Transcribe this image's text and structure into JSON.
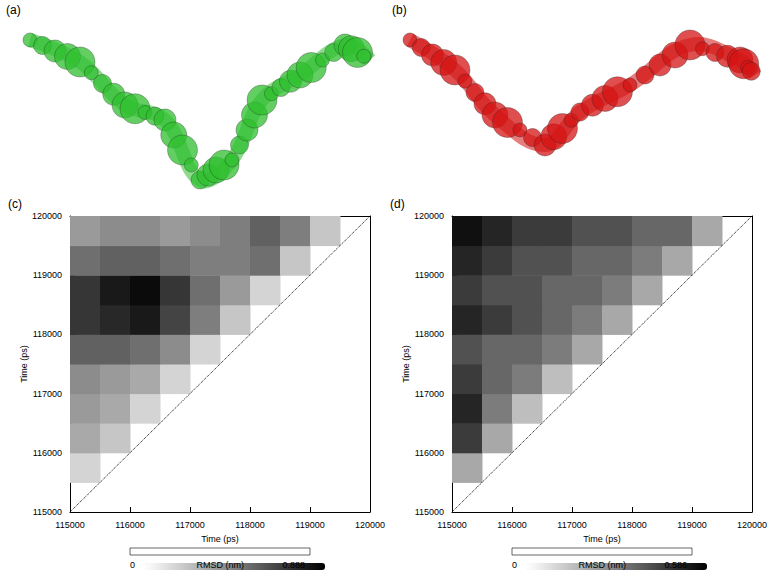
{
  "structures": [
    {
      "label": "(a)",
      "color": "#2fbf2f"
    },
    {
      "label": "(b)",
      "color": "#d41414"
    }
  ],
  "chart_data": [
    {
      "type": "heatmap",
      "label": "(c)",
      "x_label": "Time (ps)",
      "y_label": "Time (ps)",
      "xlim": [
        115000,
        120000
      ],
      "ylim": [
        115000,
        120000
      ],
      "xticks": [
        115000,
        116000,
        117000,
        118000,
        119000,
        120000
      ],
      "yticks": [
        115000,
        116000,
        117000,
        118000,
        119000,
        120000
      ],
      "grid": false,
      "bins": [
        115000,
        115500,
        116000,
        116500,
        117000,
        117500,
        118000,
        118500,
        119000,
        119500,
        120000
      ],
      "cells": [
        [
          null,
          null,
          null,
          null,
          null,
          null,
          null,
          null,
          null,
          null
        ],
        [
          0.15,
          null,
          null,
          null,
          null,
          null,
          null,
          null,
          null,
          null
        ],
        [
          0.3,
          0.2,
          null,
          null,
          null,
          null,
          null,
          null,
          null,
          null
        ],
        [
          0.35,
          0.3,
          0.15,
          null,
          null,
          null,
          null,
          null,
          null,
          null
        ],
        [
          0.4,
          0.35,
          0.3,
          0.15,
          null,
          null,
          null,
          null,
          null,
          null
        ],
        [
          0.55,
          0.55,
          0.5,
          0.4,
          0.15,
          null,
          null,
          null,
          null,
          null
        ],
        [
          0.7,
          0.75,
          0.8,
          0.65,
          0.45,
          0.2,
          null,
          null,
          null,
          null
        ],
        [
          0.7,
          0.8,
          0.85,
          0.7,
          0.5,
          0.35,
          0.15,
          null,
          null,
          null
        ],
        [
          0.5,
          0.55,
          0.55,
          0.5,
          0.45,
          0.45,
          0.5,
          0.2,
          null,
          null
        ],
        [
          0.35,
          0.4,
          0.4,
          0.35,
          0.4,
          0.45,
          0.55,
          0.45,
          0.2,
          null
        ]
      ],
      "colorbar": {
        "label": "RMSD (nm)",
        "range": [
          0,
          0.888
        ],
        "ticks": [
          0,
          0.888
        ]
      }
    },
    {
      "type": "heatmap",
      "label": "(d)",
      "x_label": "Time (ps)",
      "y_label": "Time (ps)",
      "xlim": [
        115000,
        120000
      ],
      "ylim": [
        115000,
        120000
      ],
      "xticks": [
        115000,
        116000,
        117000,
        118000,
        119000,
        120000
      ],
      "yticks": [
        115000,
        116000,
        117000,
        118000,
        119000,
        120000
      ],
      "grid": false,
      "bins": [
        115000,
        115500,
        116000,
        116500,
        117000,
        117500,
        118000,
        118500,
        119000,
        119500,
        120000
      ],
      "cells": [
        [
          null,
          null,
          null,
          null,
          null,
          null,
          null,
          null,
          null,
          null
        ],
        [
          0.2,
          null,
          null,
          null,
          null,
          null,
          null,
          null,
          null,
          null
        ],
        [
          0.45,
          0.2,
          null,
          null,
          null,
          null,
          null,
          null,
          null,
          null
        ],
        [
          0.5,
          0.3,
          0.15,
          null,
          null,
          null,
          null,
          null,
          null,
          null
        ],
        [
          0.45,
          0.35,
          0.3,
          0.15,
          null,
          null,
          null,
          null,
          null,
          null
        ],
        [
          0.4,
          0.35,
          0.35,
          0.3,
          0.2,
          null,
          null,
          null,
          null,
          null
        ],
        [
          0.5,
          0.45,
          0.4,
          0.35,
          0.3,
          0.2,
          null,
          null,
          null,
          null
        ],
        [
          0.45,
          0.4,
          0.4,
          0.35,
          0.35,
          0.3,
          0.2,
          null,
          null,
          null
        ],
        [
          0.5,
          0.45,
          0.4,
          0.4,
          0.35,
          0.35,
          0.3,
          0.2,
          null,
          null
        ],
        [
          0.55,
          0.5,
          0.45,
          0.45,
          0.4,
          0.4,
          0.35,
          0.35,
          0.2,
          null
        ]
      ],
      "colorbar": {
        "label": "RMSD (nm)",
        "range": [
          0,
          0.586
        ],
        "ticks": [
          0,
          0.586
        ]
      }
    }
  ]
}
